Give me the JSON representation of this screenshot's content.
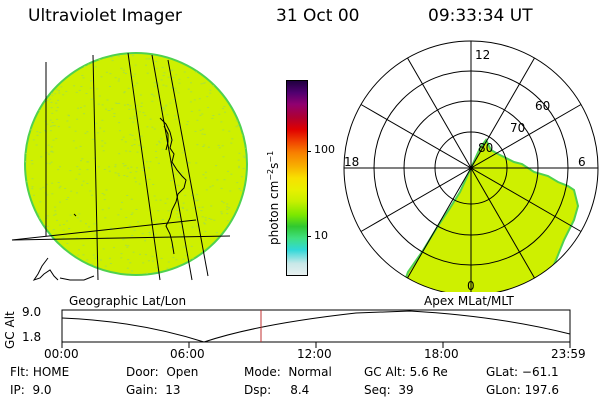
{
  "header": {
    "title": "Ultraviolet Imager",
    "date": "31 Oct 00",
    "time": "09:33:34 UT"
  },
  "colorbar": {
    "unit_label": "photon cm",
    "unit_exp1": "−2",
    "unit_s": "s",
    "unit_exp2": "−1",
    "tick_100": "100",
    "tick_10": "10",
    "colors": [
      "#e8f0f0",
      "#c8e8e8",
      "#30d8d8",
      "#40e080",
      "#30c830",
      "#7ce800",
      "#c8f000",
      "#e8f000",
      "#f8e000",
      "#f8b000",
      "#f88000",
      "#f04000",
      "#e00000",
      "#b00030",
      "#900070",
      "#500070",
      "#200040"
    ]
  },
  "image_colors": {
    "aurora": "#cef000",
    "edge": "#4fd14f",
    "speckle": "#a8e040"
  },
  "left_panel": {
    "label": "Geographic Lat/Lon"
  },
  "right_panel": {
    "label": "Apex MLat/MLT",
    "lat_labels": [
      "80",
      "70",
      "60"
    ],
    "mlt_labels": {
      "top": "12",
      "left": "18",
      "right": "6",
      "bottom": "0"
    }
  },
  "altitude_plot": {
    "ylabel": "GC Alt",
    "ytick_top": "9.0",
    "ytick_bottom": "1.8",
    "xticks": [
      "00:00",
      "06:00",
      "12:00",
      "18:00",
      "23:59"
    ],
    "current_marker_color": "#c03030"
  },
  "status": {
    "flt_label": "Flt:",
    "flt_value": "HOME",
    "ip_label": "IP:",
    "ip_value": "9.0",
    "door_label": "Door:",
    "door_value": "Open",
    "gain_label": "Gain:",
    "gain_value": "13",
    "mode_label": "Mode:",
    "mode_value": "Normal",
    "dsp_label": "Dsp:",
    "dsp_value": "8.4",
    "gcalt_label": "GC Alt:",
    "gcalt_value": "5.6 Re",
    "seq_label": "Seq:",
    "seq_value": "39",
    "glat_label": "GLat:",
    "glat_value": "−61.1",
    "glon_label": "GLon:",
    "glon_value": "197.6"
  }
}
